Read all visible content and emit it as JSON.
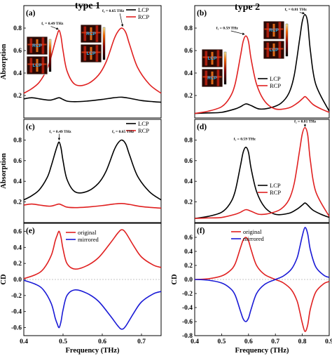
{
  "titles": {
    "type1": "type 1",
    "type2": "type 2"
  },
  "legend_labels": {
    "lcp": "LCP",
    "rcp": "RCP",
    "original": "original",
    "mirrored": "mirrored"
  },
  "insets": {
    "rcp": "RCP",
    "lcp": "LCP"
  },
  "colors": {
    "black": "#000000",
    "red": "#e02020",
    "blue": "#1a1ad6"
  },
  "chart_data": [
    {
      "id": "a",
      "type": "line",
      "panel_label": "(a)",
      "column": "type 1",
      "xlabel": "",
      "ylabel": "Absorption",
      "xlim": [
        0.4,
        0.75
      ],
      "ylim": [
        0.0,
        1.0
      ],
      "xticks": [],
      "yticks": [
        0.2,
        0.4,
        0.6,
        0.8
      ],
      "legend": "top-right",
      "series": [
        {
          "name": "LCP",
          "color": "#000000",
          "x": [
            0.4,
            0.42,
            0.44,
            0.46,
            0.47,
            0.48,
            0.49,
            0.5,
            0.51,
            0.53,
            0.56,
            0.6,
            0.63,
            0.65,
            0.67,
            0.7,
            0.73,
            0.75
          ],
          "y": [
            0.17,
            0.18,
            0.17,
            0.16,
            0.16,
            0.17,
            0.18,
            0.165,
            0.15,
            0.145,
            0.15,
            0.165,
            0.18,
            0.185,
            0.175,
            0.155,
            0.145,
            0.14
          ]
        },
        {
          "name": "RCP",
          "color": "#e02020",
          "x": [
            0.4,
            0.42,
            0.44,
            0.46,
            0.47,
            0.48,
            0.485,
            0.49,
            0.495,
            0.5,
            0.51,
            0.53,
            0.56,
            0.59,
            0.61,
            0.63,
            0.64,
            0.65,
            0.66,
            0.67,
            0.69,
            0.72,
            0.75
          ],
          "y": [
            0.22,
            0.26,
            0.32,
            0.44,
            0.55,
            0.68,
            0.74,
            0.78,
            0.72,
            0.6,
            0.42,
            0.3,
            0.3,
            0.38,
            0.5,
            0.7,
            0.77,
            0.8,
            0.76,
            0.65,
            0.45,
            0.3,
            0.22
          ]
        }
      ],
      "annotations": [
        {
          "text": "f₁ = 0.49 THz",
          "x": 0.445,
          "y": 0.83
        },
        {
          "text": "f₂ = 0.65 THz",
          "x": 0.6,
          "y": 0.945
        }
      ]
    },
    {
      "id": "b",
      "type": "line",
      "panel_label": "(b)",
      "column": "type 2",
      "xlabel": "",
      "ylabel": "",
      "xlim": [
        0.4,
        0.9
      ],
      "ylim": [
        0.0,
        1.0
      ],
      "xticks": [],
      "yticks": [
        0.2,
        0.4,
        0.6,
        0.8
      ],
      "legend": "right",
      "series": [
        {
          "name": "LCP",
          "color": "#000000",
          "x": [
            0.4,
            0.45,
            0.5,
            0.55,
            0.57,
            0.59,
            0.61,
            0.64,
            0.68,
            0.72,
            0.75,
            0.77,
            0.79,
            0.8,
            0.81,
            0.82,
            0.83,
            0.85,
            0.9
          ],
          "y": [
            0.04,
            0.045,
            0.05,
            0.08,
            0.1,
            0.125,
            0.11,
            0.08,
            0.09,
            0.13,
            0.22,
            0.38,
            0.7,
            0.86,
            0.92,
            0.85,
            0.6,
            0.3,
            0.06
          ]
        },
        {
          "name": "RCP",
          "color": "#e02020",
          "x": [
            0.4,
            0.45,
            0.5,
            0.53,
            0.55,
            0.57,
            0.58,
            0.59,
            0.6,
            0.61,
            0.63,
            0.66,
            0.7,
            0.75,
            0.78,
            0.8,
            0.81,
            0.82,
            0.84,
            0.87,
            0.9
          ],
          "y": [
            0.04,
            0.06,
            0.1,
            0.18,
            0.3,
            0.55,
            0.68,
            0.73,
            0.68,
            0.52,
            0.3,
            0.15,
            0.08,
            0.09,
            0.13,
            0.17,
            0.19,
            0.17,
            0.12,
            0.08,
            0.05
          ]
        }
      ],
      "annotations": [
        {
          "text": "f₁ = 0.59 THz",
          "x": 0.48,
          "y": 0.79
        },
        {
          "text": "f₂ = 0.81 THz",
          "x": 0.735,
          "y": 0.955
        }
      ]
    },
    {
      "id": "c",
      "type": "line",
      "panel_label": "(c)",
      "column": "type 1",
      "xlabel": "",
      "ylabel": "Absorption",
      "xlim": [
        0.4,
        0.75
      ],
      "ylim": [
        0.0,
        1.0
      ],
      "xticks": [],
      "yticks": [
        0.2,
        0.4,
        0.6,
        0.8
      ],
      "legend": "top-right",
      "series": [
        {
          "name": "LCP",
          "color": "#000000",
          "x": [
            0.4,
            0.42,
            0.44,
            0.46,
            0.47,
            0.48,
            0.485,
            0.49,
            0.495,
            0.5,
            0.51,
            0.53,
            0.56,
            0.59,
            0.61,
            0.63,
            0.64,
            0.65,
            0.66,
            0.67,
            0.69,
            0.72,
            0.75
          ],
          "y": [
            0.22,
            0.26,
            0.32,
            0.44,
            0.55,
            0.68,
            0.74,
            0.78,
            0.72,
            0.6,
            0.42,
            0.3,
            0.3,
            0.38,
            0.5,
            0.7,
            0.77,
            0.8,
            0.76,
            0.65,
            0.45,
            0.3,
            0.22
          ]
        },
        {
          "name": "RCP",
          "color": "#e02020",
          "x": [
            0.4,
            0.42,
            0.44,
            0.46,
            0.47,
            0.48,
            0.49,
            0.5,
            0.51,
            0.53,
            0.56,
            0.6,
            0.63,
            0.65,
            0.67,
            0.7,
            0.73,
            0.75
          ],
          "y": [
            0.17,
            0.18,
            0.17,
            0.16,
            0.16,
            0.17,
            0.18,
            0.165,
            0.15,
            0.145,
            0.15,
            0.165,
            0.18,
            0.185,
            0.175,
            0.155,
            0.145,
            0.14
          ]
        }
      ],
      "annotations": [
        {
          "text": "f₁ = 0.49 THz",
          "x": 0.465,
          "y": 0.87
        },
        {
          "text": "f₂ = 0.65 THz",
          "x": 0.625,
          "y": 0.87
        }
      ]
    },
    {
      "id": "d",
      "type": "line",
      "panel_label": "(d)",
      "column": "type 2",
      "xlabel": "",
      "ylabel": "",
      "xlim": [
        0.4,
        0.9
      ],
      "ylim": [
        0.0,
        1.0
      ],
      "xticks": [],
      "yticks": [
        0.2,
        0.4,
        0.6,
        0.8
      ],
      "legend": "right",
      "series": [
        {
          "name": "LCP",
          "color": "#000000",
          "x": [
            0.4,
            0.45,
            0.5,
            0.53,
            0.55,
            0.57,
            0.58,
            0.59,
            0.6,
            0.61,
            0.63,
            0.66,
            0.7,
            0.75,
            0.78,
            0.8,
            0.81,
            0.82,
            0.84,
            0.87,
            0.9
          ],
          "y": [
            0.04,
            0.06,
            0.1,
            0.18,
            0.3,
            0.55,
            0.68,
            0.73,
            0.68,
            0.52,
            0.3,
            0.15,
            0.08,
            0.09,
            0.13,
            0.17,
            0.19,
            0.17,
            0.12,
            0.08,
            0.05
          ]
        },
        {
          "name": "RCP",
          "color": "#e02020",
          "x": [
            0.4,
            0.45,
            0.5,
            0.55,
            0.57,
            0.59,
            0.61,
            0.64,
            0.68,
            0.72,
            0.75,
            0.77,
            0.79,
            0.8,
            0.81,
            0.82,
            0.83,
            0.85,
            0.9
          ],
          "y": [
            0.04,
            0.045,
            0.05,
            0.08,
            0.1,
            0.125,
            0.11,
            0.08,
            0.09,
            0.13,
            0.22,
            0.38,
            0.7,
            0.86,
            0.92,
            0.85,
            0.6,
            0.3,
            0.06
          ]
        }
      ],
      "annotations": [
        {
          "text": "f₁ = 0.59 THz",
          "x": 0.545,
          "y": 0.8
        },
        {
          "text": "f₂ = 0.81 THz",
          "x": 0.77,
          "y": 0.97
        }
      ]
    },
    {
      "id": "e",
      "type": "line",
      "panel_label": "(e)",
      "column": "type 1",
      "xlabel": "Frequency (THz)",
      "ylabel": "CD",
      "xlim": [
        0.4,
        0.75
      ],
      "ylim": [
        -0.7,
        0.7
      ],
      "xticks": [
        0.4,
        0.5,
        0.6,
        0.7
      ],
      "yticks": [
        -0.6,
        -0.4,
        -0.2,
        0.0,
        0.2,
        0.4,
        0.6
      ],
      "legend": "top-left",
      "series": [
        {
          "name": "original",
          "color": "#e02020",
          "x": [
            0.4,
            0.43,
            0.45,
            0.47,
            0.48,
            0.485,
            0.49,
            0.495,
            0.5,
            0.51,
            0.53,
            0.56,
            0.59,
            0.62,
            0.64,
            0.65,
            0.66,
            0.68,
            0.7,
            0.73,
            0.75
          ],
          "y": [
            0.01,
            0.06,
            0.13,
            0.3,
            0.48,
            0.55,
            0.6,
            0.52,
            0.38,
            0.2,
            0.13,
            0.17,
            0.27,
            0.45,
            0.58,
            0.62,
            0.58,
            0.42,
            0.28,
            0.18,
            0.15
          ]
        },
        {
          "name": "mirrored",
          "color": "#1a1ad6",
          "x": [
            0.4,
            0.43,
            0.45,
            0.47,
            0.48,
            0.485,
            0.49,
            0.495,
            0.5,
            0.51,
            0.53,
            0.56,
            0.59,
            0.62,
            0.64,
            0.65,
            0.66,
            0.68,
            0.7,
            0.73,
            0.75
          ],
          "y": [
            -0.01,
            -0.06,
            -0.13,
            -0.3,
            -0.48,
            -0.55,
            -0.6,
            -0.52,
            -0.38,
            -0.2,
            -0.13,
            -0.17,
            -0.27,
            -0.45,
            -0.58,
            -0.62,
            -0.58,
            -0.42,
            -0.28,
            -0.18,
            -0.15
          ]
        }
      ],
      "annotations": []
    },
    {
      "id": "f",
      "type": "line",
      "panel_label": "(f)",
      "column": "type 2",
      "xlabel": "Frequency (THz)",
      "ylabel": "CD",
      "xlim": [
        0.4,
        0.9
      ],
      "ylim": [
        -0.8,
        0.8
      ],
      "xticks": [
        0.4,
        0.5,
        0.6,
        0.7,
        0.8,
        0.9
      ],
      "yticks": [
        -0.8,
        -0.6,
        -0.4,
        -0.2,
        0.0,
        0.2,
        0.4,
        0.6
      ],
      "legend": "top-left",
      "series": [
        {
          "name": "original",
          "color": "#e02020",
          "x": [
            0.4,
            0.45,
            0.5,
            0.53,
            0.55,
            0.57,
            0.58,
            0.59,
            0.6,
            0.61,
            0.63,
            0.66,
            0.7,
            0.73,
            0.76,
            0.78,
            0.79,
            0.8,
            0.81,
            0.82,
            0.83,
            0.85,
            0.88,
            0.9
          ],
          "y": [
            0.0,
            0.01,
            0.05,
            0.12,
            0.22,
            0.45,
            0.56,
            0.6,
            0.55,
            0.42,
            0.2,
            0.07,
            0.0,
            -0.05,
            -0.15,
            -0.3,
            -0.45,
            -0.62,
            -0.74,
            -0.65,
            -0.42,
            -0.18,
            -0.06,
            -0.03
          ]
        },
        {
          "name": "mirrored",
          "color": "#1a1ad6",
          "x": [
            0.4,
            0.45,
            0.5,
            0.53,
            0.55,
            0.57,
            0.58,
            0.59,
            0.6,
            0.61,
            0.63,
            0.66,
            0.7,
            0.73,
            0.76,
            0.78,
            0.79,
            0.8,
            0.81,
            0.82,
            0.83,
            0.85,
            0.88,
            0.9
          ],
          "y": [
            0.0,
            -0.01,
            -0.05,
            -0.12,
            -0.22,
            -0.45,
            -0.56,
            -0.6,
            -0.55,
            -0.42,
            -0.2,
            -0.07,
            0.0,
            0.05,
            0.15,
            0.3,
            0.45,
            0.62,
            0.74,
            0.65,
            0.42,
            0.18,
            0.06,
            0.03
          ]
        }
      ],
      "annotations": []
    }
  ]
}
